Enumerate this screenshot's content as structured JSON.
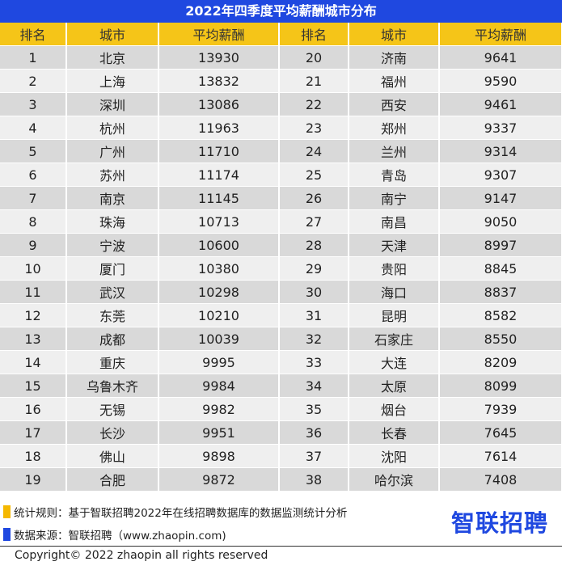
{
  "title": "2022年四季度平均薪酬城市分布",
  "headers": [
    "排名",
    "城市",
    "平均薪酬",
    "排名",
    "城市",
    "平均薪酬"
  ],
  "rows": [
    [
      "1",
      "北京",
      "13930",
      "20",
      "济南",
      "9641"
    ],
    [
      "2",
      "上海",
      "13832",
      "21",
      "福州",
      "9590"
    ],
    [
      "3",
      "深圳",
      "13086",
      "22",
      "西安",
      "9461"
    ],
    [
      "4",
      "杭州",
      "11963",
      "23",
      "郑州",
      "9337"
    ],
    [
      "5",
      "广州",
      "11710",
      "24",
      "兰州",
      "9314"
    ],
    [
      "6",
      "苏州",
      "11174",
      "25",
      "青岛",
      "9307"
    ],
    [
      "7",
      "南京",
      "11145",
      "26",
      "南宁",
      "9147"
    ],
    [
      "8",
      "珠海",
      "10713",
      "27",
      "南昌",
      "9050"
    ],
    [
      "9",
      "宁波",
      "10600",
      "28",
      "天津",
      "8997"
    ],
    [
      "10",
      "厦门",
      "10380",
      "29",
      "贵阳",
      "8845"
    ],
    [
      "11",
      "武汉",
      "10298",
      "30",
      "海口",
      "8837"
    ],
    [
      "12",
      "东莞",
      "10210",
      "31",
      "昆明",
      "8582"
    ],
    [
      "13",
      "成都",
      "10039",
      "32",
      "石家庄",
      "8550"
    ],
    [
      "14",
      "重庆",
      "9995",
      "33",
      "大连",
      "8209"
    ],
    [
      "15",
      "乌鲁木齐",
      "9984",
      "34",
      "太原",
      "8099"
    ],
    [
      "16",
      "无锡",
      "9982",
      "35",
      "烟台",
      "7939"
    ],
    [
      "17",
      "长沙",
      "9951",
      "36",
      "长春",
      "7645"
    ],
    [
      "18",
      "佛山",
      "9898",
      "37",
      "沈阳",
      "7614"
    ],
    [
      "19",
      "合肥",
      "9872",
      "38",
      "哈尔滨",
      "7408"
    ]
  ],
  "legend": {
    "rule": "统计规则：基于智联招聘2022年在线招聘数据库的数据监测统计分析",
    "source": "数据来源：智联招聘（www.zhaopin.com)"
  },
  "logo": "智联招聘",
  "copyright": "Copyright© 2022 zhaopin all rights reserved",
  "colors": {
    "title_bg": "#1f48e0",
    "header_bg": "#f5c518",
    "row_odd": "#d9d9d9",
    "row_even": "#efefef"
  }
}
